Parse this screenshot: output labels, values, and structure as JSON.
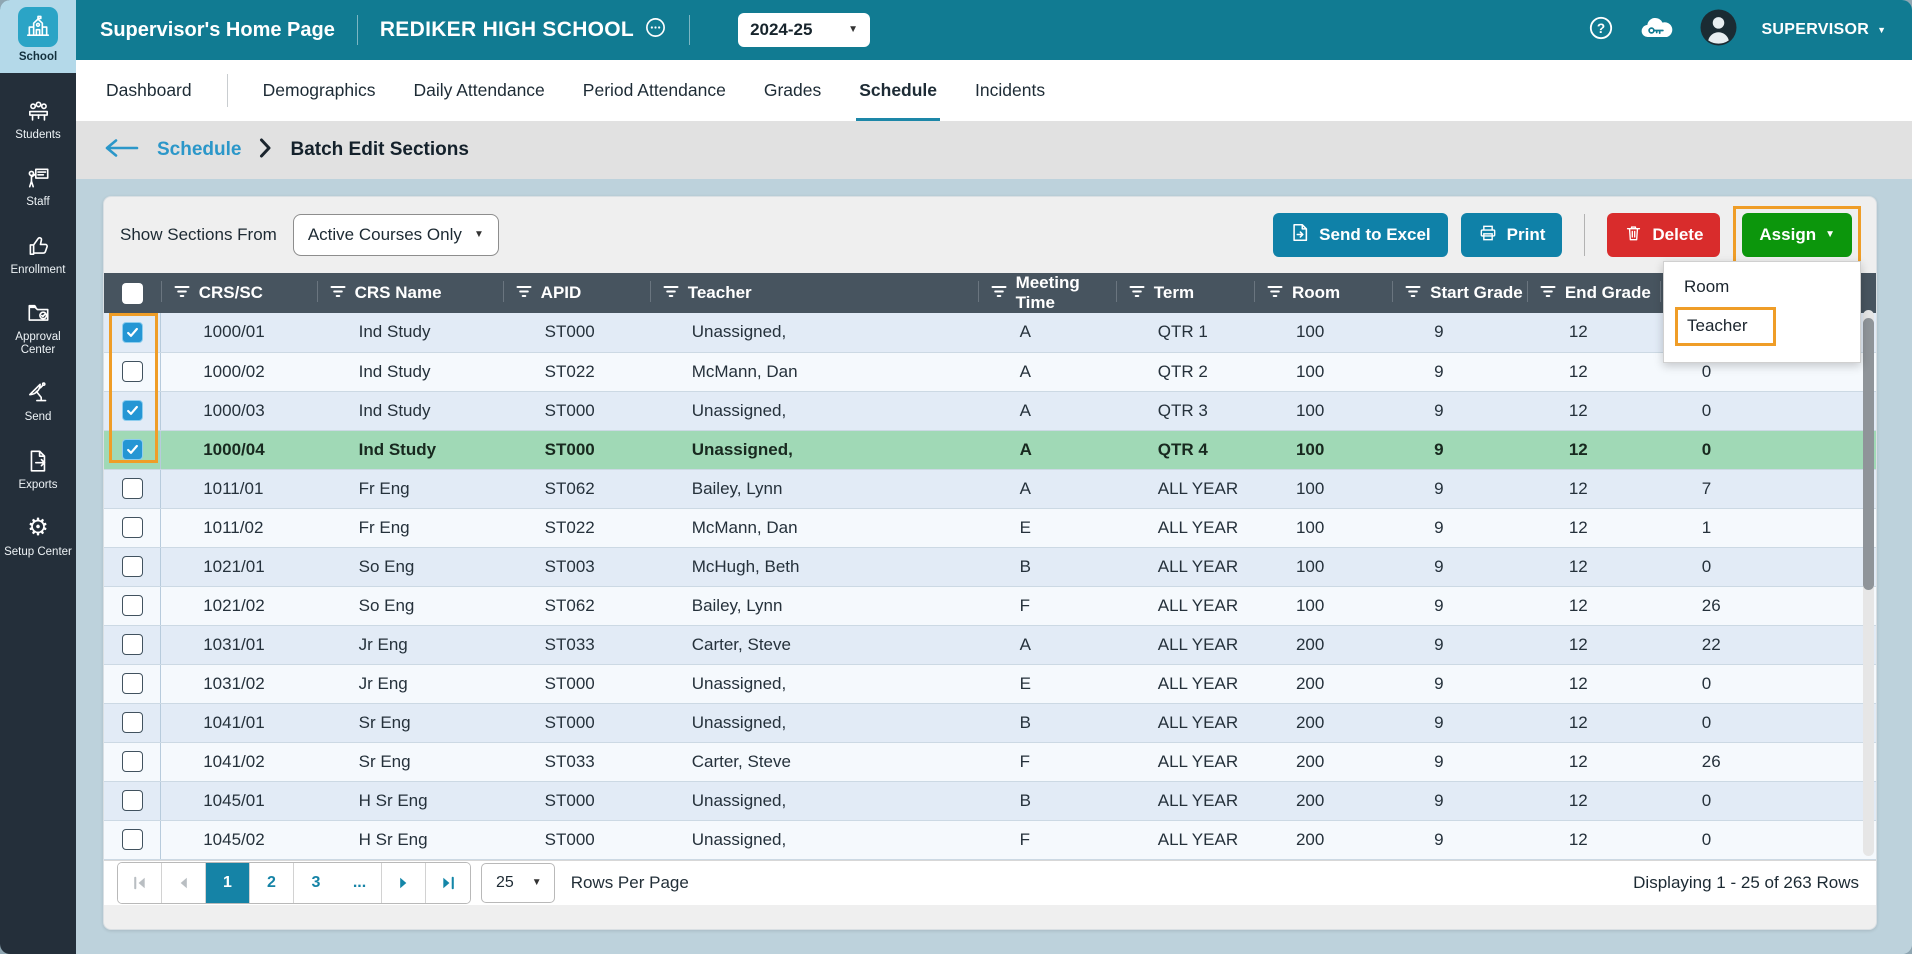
{
  "app": {
    "title": "Supervisor's Home Page",
    "school": "REDIKER HIGH SCHOOL",
    "year": "2024-25",
    "user": "SUPERVISOR"
  },
  "sidebar": {
    "items": [
      {
        "label": "School",
        "icon": "school",
        "active": true
      },
      {
        "label": "Students",
        "icon": "students",
        "active": false
      },
      {
        "label": "Staff",
        "icon": "staff",
        "active": false
      },
      {
        "label": "Enrollment",
        "icon": "enrollment",
        "active": false
      },
      {
        "label": "Approval Center",
        "icon": "approval-center",
        "active": false
      },
      {
        "label": "Send",
        "icon": "send",
        "active": false
      },
      {
        "label": "Exports",
        "icon": "exports",
        "active": false
      },
      {
        "label": "Setup Center",
        "icon": "setup-center",
        "active": false
      }
    ]
  },
  "nav": {
    "tabs": [
      {
        "label": "Dashboard",
        "divider_after": true
      },
      {
        "label": "Demographics"
      },
      {
        "label": "Daily Attendance"
      },
      {
        "label": "Period Attendance"
      },
      {
        "label": "Grades"
      },
      {
        "label": "Schedule",
        "active": true
      },
      {
        "label": "Incidents"
      }
    ]
  },
  "breadcrumb": {
    "link": "Schedule",
    "current": "Batch Edit Sections"
  },
  "toolbar": {
    "filter_label": "Show Sections From",
    "filter_value": "Active Courses Only",
    "send_to_excel": "Send to Excel",
    "print": "Print",
    "delete": "Delete",
    "assign": "Assign"
  },
  "assign_menu": {
    "items": [
      {
        "label": "Room",
        "highlighted": false
      },
      {
        "label": "Teacher",
        "highlighted": true
      }
    ]
  },
  "table": {
    "columns": [
      "CRS/SC",
      "CRS Name",
      "APID",
      "Teacher",
      "Meeting Time",
      "Term",
      "Room",
      "Start Grade",
      "End Grade",
      ""
    ],
    "rows": [
      {
        "checked": true,
        "selected": false,
        "crs_sc": "1000/01",
        "crs_name": "Ind Study",
        "apid": "ST000",
        "teacher": "Unassigned,",
        "meeting_time": "A",
        "term": "QTR 1",
        "room": "100",
        "start_grade": "9",
        "end_grade": "12",
        "last_col": ""
      },
      {
        "checked": false,
        "selected": false,
        "crs_sc": "1000/02",
        "crs_name": "Ind Study",
        "apid": "ST022",
        "teacher": "McMann, Dan",
        "meeting_time": "A",
        "term": "QTR 2",
        "room": "100",
        "start_grade": "9",
        "end_grade": "12",
        "last_col": "0"
      },
      {
        "checked": true,
        "selected": false,
        "crs_sc": "1000/03",
        "crs_name": "Ind Study",
        "apid": "ST000",
        "teacher": "Unassigned,",
        "meeting_time": "A",
        "term": "QTR 3",
        "room": "100",
        "start_grade": "9",
        "end_grade": "12",
        "last_col": "0"
      },
      {
        "checked": true,
        "selected": true,
        "crs_sc": "1000/04",
        "crs_name": "Ind Study",
        "apid": "ST000",
        "teacher": "Unassigned,",
        "meeting_time": "A",
        "term": "QTR 4",
        "room": "100",
        "start_grade": "9",
        "end_grade": "12",
        "last_col": "0"
      },
      {
        "checked": false,
        "selected": false,
        "crs_sc": "1011/01",
        "crs_name": "Fr Eng",
        "apid": "ST062",
        "teacher": "Bailey, Lynn",
        "meeting_time": "A",
        "term": "ALL YEAR",
        "room": "100",
        "start_grade": "9",
        "end_grade": "12",
        "last_col": "7"
      },
      {
        "checked": false,
        "selected": false,
        "crs_sc": "1011/02",
        "crs_name": "Fr Eng",
        "apid": "ST022",
        "teacher": "McMann, Dan",
        "meeting_time": "E",
        "term": "ALL YEAR",
        "room": "100",
        "start_grade": "9",
        "end_grade": "12",
        "last_col": "1"
      },
      {
        "checked": false,
        "selected": false,
        "crs_sc": "1021/01",
        "crs_name": "So Eng",
        "apid": "ST003",
        "teacher": "McHugh, Beth",
        "meeting_time": "B",
        "term": "ALL YEAR",
        "room": "100",
        "start_grade": "9",
        "end_grade": "12",
        "last_col": "0"
      },
      {
        "checked": false,
        "selected": false,
        "crs_sc": "1021/02",
        "crs_name": "So Eng",
        "apid": "ST062",
        "teacher": "Bailey, Lynn",
        "meeting_time": "F",
        "term": "ALL YEAR",
        "room": "100",
        "start_grade": "9",
        "end_grade": "12",
        "last_col": "26"
      },
      {
        "checked": false,
        "selected": false,
        "crs_sc": "1031/01",
        "crs_name": "Jr Eng",
        "apid": "ST033",
        "teacher": "Carter, Steve",
        "meeting_time": "A",
        "term": "ALL YEAR",
        "room": "200",
        "start_grade": "9",
        "end_grade": "12",
        "last_col": "22"
      },
      {
        "checked": false,
        "selected": false,
        "crs_sc": "1031/02",
        "crs_name": "Jr Eng",
        "apid": "ST000",
        "teacher": "Unassigned,",
        "meeting_time": "E",
        "term": "ALL YEAR",
        "room": "200",
        "start_grade": "9",
        "end_grade": "12",
        "last_col": "0"
      },
      {
        "checked": false,
        "selected": false,
        "crs_sc": "1041/01",
        "crs_name": "Sr Eng",
        "apid": "ST000",
        "teacher": "Unassigned,",
        "meeting_time": "B",
        "term": "ALL YEAR",
        "room": "200",
        "start_grade": "9",
        "end_grade": "12",
        "last_col": "0"
      },
      {
        "checked": false,
        "selected": false,
        "crs_sc": "1041/02",
        "crs_name": "Sr Eng",
        "apid": "ST033",
        "teacher": "Carter, Steve",
        "meeting_time": "F",
        "term": "ALL YEAR",
        "room": "200",
        "start_grade": "9",
        "end_grade": "12",
        "last_col": "26"
      },
      {
        "checked": false,
        "selected": false,
        "crs_sc": "1045/01",
        "crs_name": "H Sr Eng",
        "apid": "ST000",
        "teacher": "Unassigned,",
        "meeting_time": "B",
        "term": "ALL YEAR",
        "room": "200",
        "start_grade": "9",
        "end_grade": "12",
        "last_col": "0"
      },
      {
        "checked": false,
        "selected": false,
        "crs_sc": "1045/02",
        "crs_name": "H Sr Eng",
        "apid": "ST000",
        "teacher": "Unassigned,",
        "meeting_time": "F",
        "term": "ALL YEAR",
        "room": "200",
        "start_grade": "9",
        "end_grade": "12",
        "last_col": "0"
      }
    ]
  },
  "pagination": {
    "pages": [
      "1",
      "2",
      "3"
    ],
    "active_page": "1",
    "ellipsis": "...",
    "rows_per_page": "25",
    "rows_per_page_label": "Rows Per Page",
    "summary": "Displaying 1 - 25 of 263 Rows"
  },
  "colors": {
    "header_teal": "#117b92",
    "sidebar_dark": "#242f3a",
    "accent_blue": "#1583a6",
    "button_teal": "#0f81a8",
    "delete_red": "#d92c2c",
    "assign_green": "#0c960c",
    "highlight_orange": "#ef9d27",
    "selected_row_green": "#a0d9b6",
    "row_alt_blue": "#e2ebf6",
    "table_header_slate": "#47545f",
    "checkbox_blue": "#2596d4"
  }
}
